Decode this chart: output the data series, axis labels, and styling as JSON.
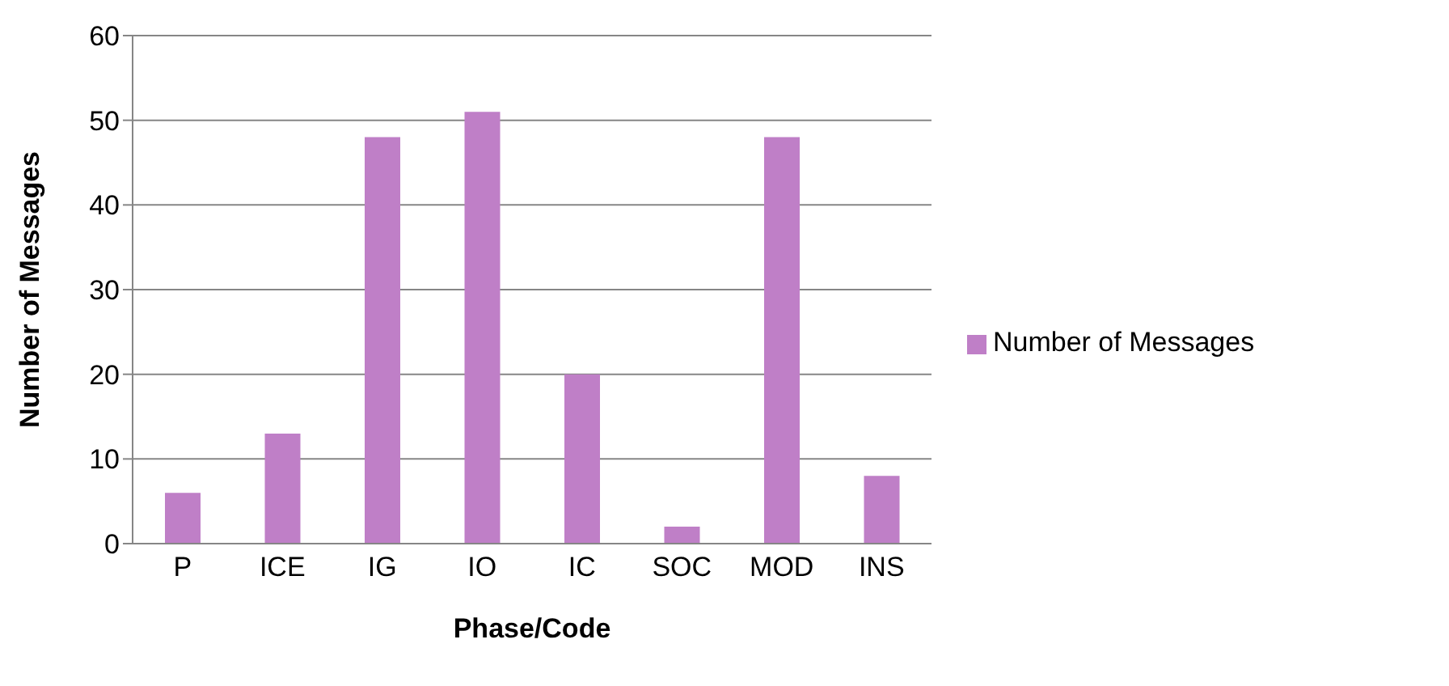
{
  "chart_data": {
    "type": "bar",
    "xlabel": "Phase/Code",
    "ylabel": "Number of Messages",
    "categories": [
      "P",
      "ICE",
      "IG",
      "IO",
      "IC",
      "SOC",
      "MOD",
      "INS"
    ],
    "series": [
      {
        "name": "Number of Messages",
        "color": "#bf7fc7",
        "values": [
          6,
          13,
          48,
          51,
          20,
          2,
          48,
          8
        ]
      }
    ],
    "ylim": [
      0,
      60
    ],
    "yticks": [
      0,
      10,
      20,
      30,
      40,
      50,
      60
    ],
    "grid": "y",
    "legend": "right"
  }
}
